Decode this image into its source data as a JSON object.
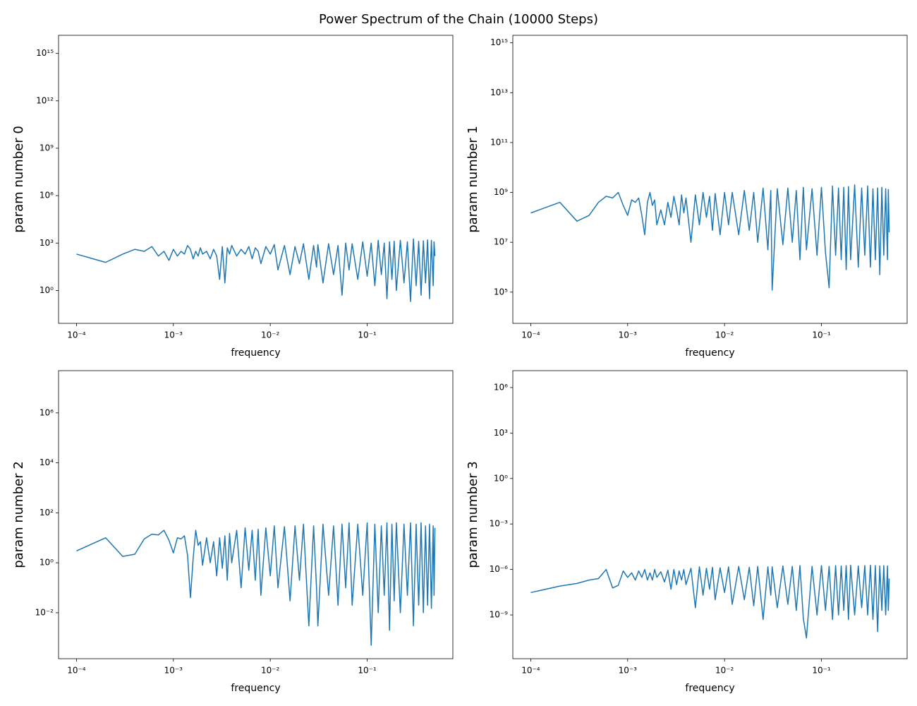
{
  "title": "Power Spectrum of the Chain (10000 Steps)",
  "chart_data": [
    {
      "type": "line",
      "xlabel": "frequency",
      "ylabel": "param number 0",
      "xscale": "log",
      "yscale": "log",
      "xlim": [
        6.53e-05,
        0.766
      ],
      "ylim": [
        0.0083,
        1.4e+16
      ],
      "xticks": [
        {
          "value": 0.0001,
          "label": "10⁻⁴"
        },
        {
          "value": 0.001,
          "label": "10⁻³"
        },
        {
          "value": 0.01,
          "label": "10⁻²"
        },
        {
          "value": 0.1,
          "label": "10⁻¹"
        }
      ],
      "yticks": [
        {
          "value": 1,
          "label": "10⁰"
        },
        {
          "value": 1000,
          "label": "10³"
        },
        {
          "value": 1000000.0,
          "label": "10⁶"
        },
        {
          "value": 1000000000.0,
          "label": "10⁹"
        },
        {
          "value": 1000000000000.0,
          "label": "10¹²"
        },
        {
          "value": 1000000000000000.0,
          "label": "10¹⁵"
        }
      ],
      "x": [
        0.0001,
        0.0002,
        0.0003,
        0.0004,
        0.0005,
        0.0006,
        0.0007,
        0.0008,
        0.0009,
        0.001,
        0.0011,
        0.0012,
        0.0013,
        0.0014,
        0.0015,
        0.0016,
        0.0017,
        0.0018,
        0.0019,
        0.002,
        0.0022,
        0.0024,
        0.0026,
        0.0028,
        0.003,
        0.0032,
        0.0034,
        0.0036,
        0.0038,
        0.004,
        0.0045,
        0.005,
        0.0055,
        0.006,
        0.0065,
        0.007,
        0.0075,
        0.008,
        0.009,
        0.01,
        0.011,
        0.012,
        0.014,
        0.016,
        0.018,
        0.02,
        0.022,
        0.025,
        0.028,
        0.03,
        0.031,
        0.035,
        0.04,
        0.045,
        0.05,
        0.055,
        0.06,
        0.065,
        0.07,
        0.08,
        0.09,
        0.1,
        0.11,
        0.12,
        0.13,
        0.14,
        0.15,
        0.16,
        0.17,
        0.18,
        0.19,
        0.2,
        0.22,
        0.24,
        0.26,
        0.28,
        0.3,
        0.32,
        0.34,
        0.36,
        0.38,
        0.4,
        0.42,
        0.44,
        0.46,
        0.48,
        0.49,
        0.5
      ],
      "series": [
        {
          "color": "#1f77b4",
          "values": [
            200,
            60,
            200,
            400,
            300,
            600,
            150,
            300,
            80,
            400,
            150,
            300,
            200,
            700,
            400,
            100,
            300,
            150,
            500,
            200,
            300,
            100,
            400,
            150,
            5,
            600,
            3,
            500,
            200,
            700,
            150,
            400,
            200,
            600,
            100,
            500,
            300,
            50,
            600,
            200,
            800,
            20,
            700,
            10,
            600,
            50,
            900,
            5,
            700,
            30,
            800,
            3,
            900,
            10,
            700,
            0.5,
            1000,
            20,
            900,
            5,
            1200,
            8,
            1000,
            2,
            1500,
            10,
            1000,
            0.3,
            1200,
            5,
            1300,
            1,
            1500,
            3,
            1200,
            0.2,
            1800,
            2,
            1300,
            0.5,
            1400,
            3,
            1600,
            0.3,
            1500,
            2,
            1200,
            150
          ]
        }
      ]
    },
    {
      "type": "line",
      "xlabel": "frequency",
      "ylabel": "param number 1",
      "xscale": "log",
      "yscale": "log",
      "xlim": [
        6.53e-05,
        0.766
      ],
      "ylim": [
        5600,
        2000000000000000.0
      ],
      "xticks": [
        {
          "value": 0.0001,
          "label": "10⁻⁴"
        },
        {
          "value": 0.001,
          "label": "10⁻³"
        },
        {
          "value": 0.01,
          "label": "10⁻²"
        },
        {
          "value": 0.1,
          "label": "10⁻¹"
        }
      ],
      "yticks": [
        {
          "value": 100000,
          "label": "10⁵"
        },
        {
          "value": 10000000.0,
          "label": "10⁷"
        },
        {
          "value": 1000000000.0,
          "label": "10⁹"
        },
        {
          "value": 100000000000.0,
          "label": "10¹¹"
        },
        {
          "value": 10000000000000.0,
          "label": "10¹³"
        },
        {
          "value": 1000000000000000.0,
          "label": "10¹⁵"
        }
      ],
      "x": [
        0.0001,
        0.0002,
        0.0003,
        0.0004,
        0.0005,
        0.0006,
        0.0007,
        0.0008,
        0.0009,
        0.001,
        0.0011,
        0.0012,
        0.0013,
        0.0014,
        0.0015,
        0.0016,
        0.0017,
        0.0018,
        0.0019,
        0.002,
        0.0022,
        0.0024,
        0.0026,
        0.0028,
        0.003,
        0.0032,
        0.0034,
        0.0036,
        0.0038,
        0.004,
        0.0045,
        0.005,
        0.0055,
        0.006,
        0.0065,
        0.007,
        0.0075,
        0.008,
        0.009,
        0.01,
        0.011,
        0.012,
        0.014,
        0.016,
        0.018,
        0.02,
        0.022,
        0.025,
        0.028,
        0.03,
        0.031,
        0.035,
        0.04,
        0.045,
        0.05,
        0.055,
        0.06,
        0.065,
        0.07,
        0.08,
        0.09,
        0.1,
        0.11,
        0.12,
        0.13,
        0.14,
        0.15,
        0.16,
        0.17,
        0.18,
        0.19,
        0.2,
        0.22,
        0.24,
        0.26,
        0.28,
        0.3,
        0.32,
        0.34,
        0.36,
        0.38,
        0.4,
        0.42,
        0.44,
        0.46,
        0.48,
        0.49,
        0.5
      ],
      "series": [
        {
          "color": "#1f77b4",
          "values": [
            150000000.0,
            400000000.0,
            70000000.0,
            120000000.0,
            400000000.0,
            700000000.0,
            600000000.0,
            1000000000.0,
            300000000.0,
            120000000.0,
            500000000.0,
            400000000.0,
            600000000.0,
            120000000.0,
            20000000.0,
            400000000.0,
            1000000000.0,
            300000000.0,
            500000000.0,
            50000000.0,
            200000000.0,
            50000000.0,
            400000000.0,
            100000000.0,
            700000000.0,
            200000000.0,
            50000000.0,
            800000000.0,
            150000000.0,
            600000000.0,
            10000000.0,
            800000000.0,
            50000000.0,
            1000000000.0,
            100000000.0,
            700000000.0,
            30000000.0,
            900000000.0,
            20000000.0,
            1000000000.0,
            50000000.0,
            1000000000.0,
            20000000.0,
            1200000000.0,
            30000000.0,
            1000000000.0,
            10000000.0,
            1500000000.0,
            5000000.0,
            1200000000.0,
            120000.0,
            1400000000.0,
            8000000.0,
            1500000000.0,
            10000000.0,
            1200000000.0,
            2000000.0,
            1600000000.0,
            5000000.0,
            1400000000.0,
            3000000.0,
            1600000000.0,
            4000000.0,
            150000.0,
            1800000000.0,
            3000000.0,
            1500000000.0,
            2000000.0,
            1600000000.0,
            800000.0,
            1700000000.0,
            2000000.0,
            2000000000.0,
            1000000.0,
            1500000000.0,
            3000000.0,
            1800000000.0,
            1000000.0,
            1400000000.0,
            2000000.0,
            1500000000.0,
            500000.0,
            1600000000.0,
            3000000.0,
            1400000000.0,
            2000000.0,
            1300000000.0,
            25000000.0
          ]
        }
      ]
    },
    {
      "type": "line",
      "xlabel": "frequency",
      "ylabel": "param number 2",
      "xscale": "log",
      "yscale": "log",
      "xlim": [
        6.53e-05,
        0.766
      ],
      "ylim": [
        0.000145,
        49000000.0
      ],
      "xticks": [
        {
          "value": 0.0001,
          "label": "10⁻⁴"
        },
        {
          "value": 0.001,
          "label": "10⁻³"
        },
        {
          "value": 0.01,
          "label": "10⁻²"
        },
        {
          "value": 0.1,
          "label": "10⁻¹"
        }
      ],
      "yticks": [
        {
          "value": 0.01,
          "label": "10⁻²"
        },
        {
          "value": 1,
          "label": "10⁰"
        },
        {
          "value": 100,
          "label": "10²"
        },
        {
          "value": 10000,
          "label": "10⁴"
        },
        {
          "value": 1000000.0,
          "label": "10⁶"
        }
      ],
      "x": [
        0.0001,
        0.0002,
        0.0003,
        0.0004,
        0.0005,
        0.0006,
        0.0007,
        0.0008,
        0.0009,
        0.001,
        0.0011,
        0.0012,
        0.0013,
        0.0014,
        0.0015,
        0.0016,
        0.0017,
        0.0018,
        0.0019,
        0.002,
        0.0022,
        0.0024,
        0.0026,
        0.0028,
        0.003,
        0.0032,
        0.0034,
        0.0036,
        0.0038,
        0.004,
        0.0045,
        0.005,
        0.0055,
        0.006,
        0.0065,
        0.007,
        0.0075,
        0.008,
        0.009,
        0.01,
        0.011,
        0.012,
        0.014,
        0.016,
        0.018,
        0.02,
        0.022,
        0.025,
        0.028,
        0.03,
        0.031,
        0.035,
        0.04,
        0.045,
        0.05,
        0.055,
        0.06,
        0.065,
        0.07,
        0.08,
        0.09,
        0.1,
        0.11,
        0.12,
        0.13,
        0.14,
        0.15,
        0.16,
        0.17,
        0.18,
        0.19,
        0.2,
        0.22,
        0.24,
        0.26,
        0.28,
        0.3,
        0.32,
        0.34,
        0.36,
        0.38,
        0.4,
        0.42,
        0.44,
        0.46,
        0.48,
        0.49,
        0.5
      ],
      "series": [
        {
          "color": "#1f77b4",
          "values": [
            3,
            10,
            1.8,
            2.2,
            9,
            14,
            13,
            20,
            8,
            2.5,
            10,
            9,
            12,
            2,
            0.04,
            1.5,
            20,
            5,
            7,
            0.8,
            10,
            1,
            7,
            0.3,
            10,
            0.6,
            12,
            0.2,
            15,
            1,
            20,
            0.1,
            25,
            0.5,
            20,
            0.2,
            22,
            0.05,
            25,
            0.3,
            30,
            0.1,
            28,
            0.03,
            30,
            0.2,
            35,
            0.003,
            30,
            0.1,
            0.003,
            35,
            0.05,
            30,
            0.02,
            35,
            0.1,
            40,
            0.02,
            35,
            0.05,
            40,
            0.0005,
            35,
            0.01,
            30,
            0.05,
            40,
            0.002,
            35,
            0.03,
            40,
            0.01,
            35,
            0.05,
            40,
            0.003,
            35,
            0.02,
            40,
            0.01,
            30,
            0.02,
            35,
            0.015,
            30,
            0.05,
            25
          ]
        }
      ]
    },
    {
      "type": "line",
      "xlabel": "frequency",
      "ylabel": "param number 3",
      "xscale": "log",
      "yscale": "log",
      "xlim": [
        6.53e-05,
        0.766
      ],
      "ylim": [
        1.3e-12,
        13000000.0
      ],
      "xticks": [
        {
          "value": 0.0001,
          "label": "10⁻⁴"
        },
        {
          "value": 0.001,
          "label": "10⁻³"
        },
        {
          "value": 0.01,
          "label": "10⁻²"
        },
        {
          "value": 0.1,
          "label": "10⁻¹"
        }
      ],
      "yticks": [
        {
          "value": 1e-09,
          "label": "10⁻⁹"
        },
        {
          "value": 1e-06,
          "label": "10⁻⁶"
        },
        {
          "value": 0.001,
          "label": "10⁻³"
        },
        {
          "value": 1,
          "label": "10⁰"
        },
        {
          "value": 1000,
          "label": "10³"
        },
        {
          "value": 1000000.0,
          "label": "10⁶"
        }
      ],
      "x": [
        0.0001,
        0.0002,
        0.0003,
        0.0004,
        0.0005,
        0.0006,
        0.0007,
        0.0008,
        0.0009,
        0.001,
        0.0011,
        0.0012,
        0.0013,
        0.0014,
        0.0015,
        0.0016,
        0.0017,
        0.0018,
        0.0019,
        0.002,
        0.0022,
        0.0024,
        0.0026,
        0.0028,
        0.003,
        0.0032,
        0.0034,
        0.0036,
        0.0038,
        0.004,
        0.0045,
        0.005,
        0.0055,
        0.006,
        0.0065,
        0.007,
        0.0075,
        0.008,
        0.009,
        0.01,
        0.011,
        0.012,
        0.014,
        0.016,
        0.018,
        0.02,
        0.022,
        0.025,
        0.028,
        0.03,
        0.031,
        0.035,
        0.04,
        0.045,
        0.05,
        0.055,
        0.06,
        0.065,
        0.07,
        0.08,
        0.09,
        0.1,
        0.11,
        0.12,
        0.13,
        0.14,
        0.15,
        0.16,
        0.17,
        0.18,
        0.19,
        0.2,
        0.22,
        0.24,
        0.26,
        0.28,
        0.3,
        0.32,
        0.34,
        0.36,
        0.38,
        0.4,
        0.42,
        0.44,
        0.46,
        0.48,
        0.49,
        0.5
      ],
      "series": [
        {
          "color": "#1f77b4",
          "values": [
            3e-08,
            8e-08,
            1.2e-07,
            2e-07,
            2.5e-07,
            1e-06,
            6e-08,
            9e-08,
            8e-07,
            3e-07,
            6e-07,
            2e-07,
            8e-07,
            3e-07,
            1e-06,
            2e-07,
            6e-07,
            2e-07,
            1e-06,
            3e-07,
            7e-07,
            1.5e-07,
            9e-07,
            5e-08,
            1e-06,
            1e-07,
            8e-07,
            2e-07,
            1e-06,
            1e-07,
            1.2e-06,
            3e-09,
            1.5e-06,
            2e-08,
            1.2e-06,
            5e-08,
            1.4e-06,
            1e-08,
            1.3e-06,
            3e-08,
            1.5e-06,
            5e-09,
            1.6e-06,
            1e-08,
            1.4e-06,
            4e-09,
            1.6e-06,
            5e-10,
            1.5e-06,
            2e-08,
            1.5e-06,
            3e-09,
            1.7e-06,
            5e-09,
            1.6e-06,
            2e-09,
            1.8e-06,
            6e-10,
            3e-11,
            1.6e-06,
            1e-09,
            1.8e-06,
            2e-09,
            1.6e-06,
            5e-10,
            1.8e-06,
            1e-09,
            1.7e-06,
            2e-09,
            1.8e-06,
            5e-10,
            1.9e-06,
            1e-09,
            1.7e-06,
            3e-09,
            1.8e-06,
            1e-09,
            1.9e-06,
            5e-10,
            1.8e-06,
            8e-11,
            1.7e-06,
            2e-09,
            1.8e-06,
            1e-09,
            1.7e-06,
            2e-09,
            2.5e-07
          ]
        }
      ]
    }
  ]
}
